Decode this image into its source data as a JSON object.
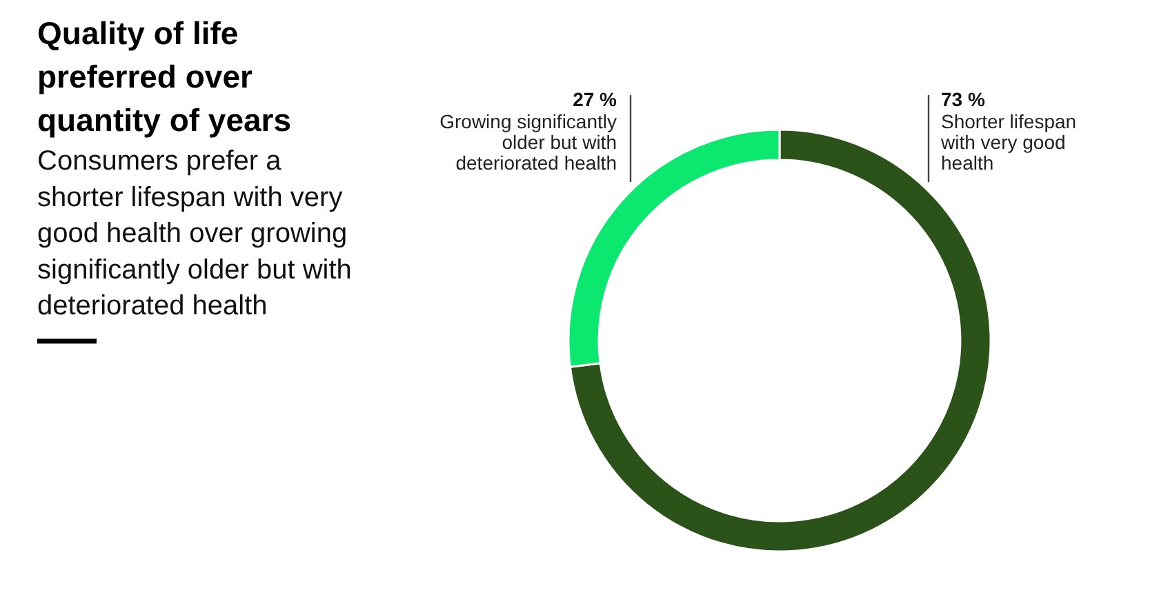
{
  "chart_data": {
    "type": "donut",
    "title": "Quality of life preferred over quantity of years",
    "subtitle": "Consumers prefer a shorter lifespan with very good health over growing significantly older but with deteriorated health",
    "categories": [
      "Shorter lifespan with very good health",
      "Growing significantly older but with deteriorated health"
    ],
    "values": [
      73,
      27
    ],
    "colors": [
      "#2b5219",
      "#0ce86f"
    ],
    "value_labels": [
      "73 %",
      "27 %"
    ]
  }
}
